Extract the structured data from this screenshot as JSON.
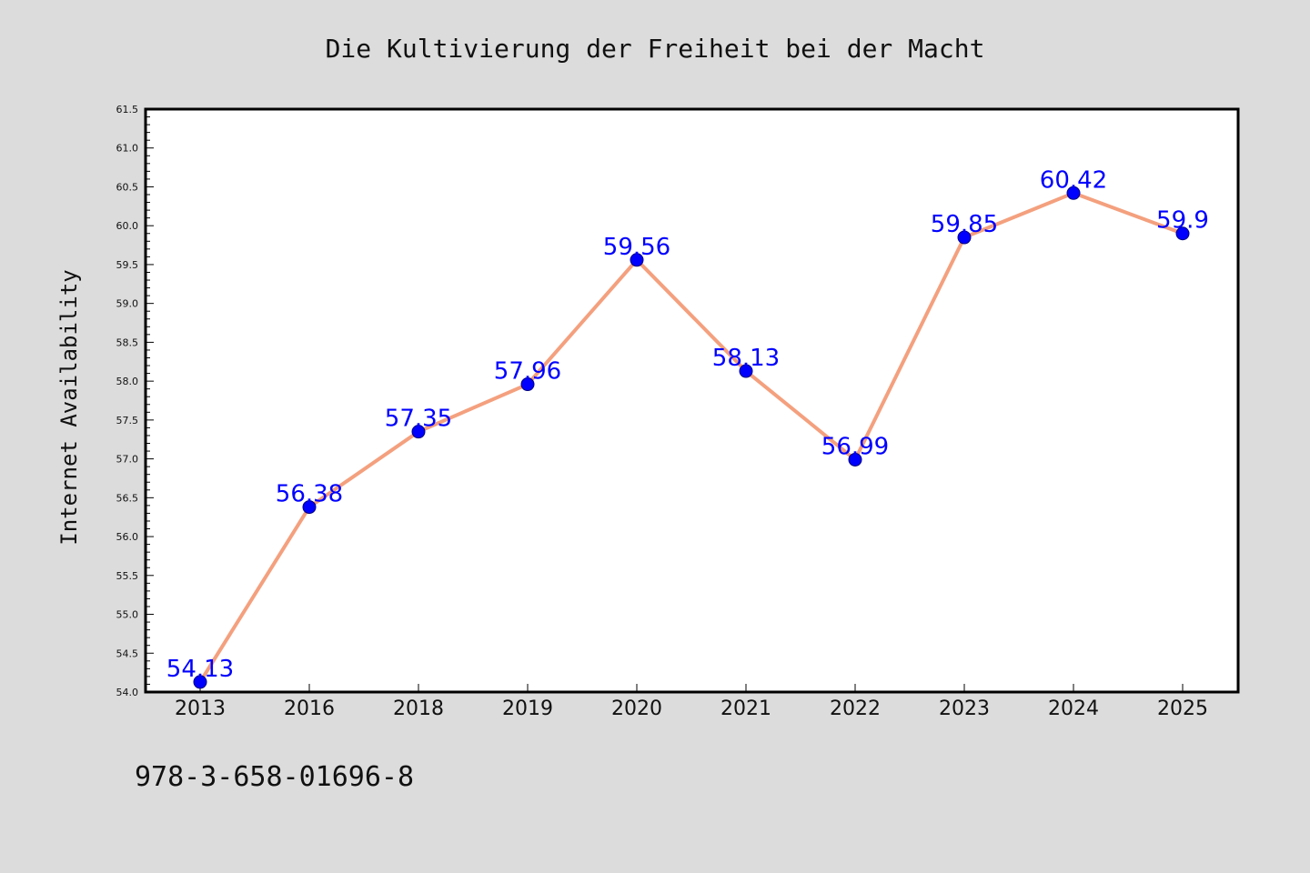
{
  "chart_data": {
    "type": "line",
    "title": "Die Kultivierung der Freiheit bei der Macht",
    "xlabel": "",
    "ylabel": "Internet Availability",
    "categories": [
      "2013",
      "2016",
      "2018",
      "2019",
      "2020",
      "2021",
      "2022",
      "2023",
      "2024",
      "2025"
    ],
    "values": [
      54.13,
      56.38,
      57.35,
      57.96,
      59.56,
      58.13,
      56.99,
      59.85,
      60.42,
      59.9
    ],
    "data_labels": [
      "54.13",
      "56.38",
      "57.35",
      "57.96",
      "59.56",
      "58.13",
      "56.99",
      "59.85",
      "60.42",
      "59.9"
    ],
    "ylim": [
      54.0,
      61.5
    ],
    "yticks": [
      "54.0",
      "54.5",
      "55.0",
      "55.5",
      "56.0",
      "56.5",
      "57.0",
      "57.5",
      "58.0",
      "58.5",
      "59.0",
      "59.5",
      "60.0",
      "60.5",
      "61.0",
      "61.5"
    ],
    "grid": false,
    "legend": "none",
    "line_color": "#f4a07e",
    "marker_color": "#0000ff",
    "label_color": "#0000ff",
    "plot_background": "#ffffff",
    "figure_background": "#dcdcdc"
  },
  "footer": {
    "code": "978-3-658-01696-8"
  }
}
